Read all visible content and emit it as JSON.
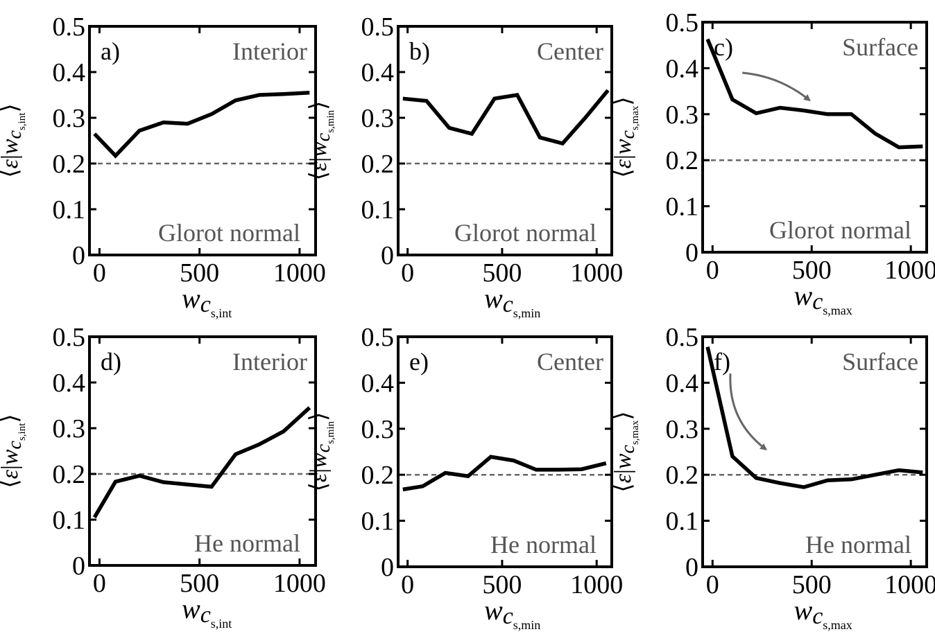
{
  "chart_data": [
    {
      "type": "line",
      "panel_label": "a)",
      "title": "Interior",
      "initializer": "Glorot normal",
      "xlabel": {
        "symbol": "w",
        "sub_c": "c",
        "sub_s": "s,int"
      },
      "ylabel": {
        "symbol": "w",
        "sub_c": "c",
        "sub_s": "s,int"
      },
      "xlim": [
        -50,
        1080
      ],
      "ylim": [
        0,
        0.5
      ],
      "xticks": [
        "0",
        "500",
        "1000"
      ],
      "yticks": [
        "0",
        "0.1",
        "0.2",
        "0.3",
        "0.4",
        "0.5"
      ],
      "reference_line": 0.2,
      "series": [
        {
          "x": [
            -25,
            80,
            200,
            320,
            440,
            560,
            680,
            800,
            920,
            1050
          ],
          "y": [
            0.265,
            0.217,
            0.272,
            0.29,
            0.287,
            0.308,
            0.338,
            0.35,
            0.352,
            0.355
          ]
        }
      ]
    },
    {
      "type": "line",
      "panel_label": "b)",
      "title": "Center",
      "initializer": "Glorot normal",
      "xlabel": {
        "symbol": "w",
        "sub_c": "c",
        "sub_s": "s,min"
      },
      "ylabel": {
        "symbol": "w",
        "sub_c": "c",
        "sub_s": "s,min"
      },
      "xlim": [
        -50,
        1080
      ],
      "ylim": [
        0,
        0.5
      ],
      "xticks": [
        "0",
        "500",
        "1000"
      ],
      "yticks": [
        "0",
        "0.1",
        "0.2",
        "0.3",
        "0.4",
        "0.5"
      ],
      "reference_line": 0.2,
      "series": [
        {
          "x": [
            -25,
            100,
            220,
            340,
            460,
            580,
            700,
            820,
            940,
            1060
          ],
          "y": [
            0.342,
            0.337,
            0.278,
            0.265,
            0.342,
            0.35,
            0.257,
            0.244,
            0.3,
            0.36
          ]
        }
      ]
    },
    {
      "type": "line",
      "panel_label": "c)",
      "title": "Surface",
      "initializer": "Glorot normal",
      "xlabel": {
        "symbol": "w",
        "sub_c": "c",
        "sub_s": "s,max"
      },
      "ylabel": {
        "symbol": "w",
        "sub_c": "c",
        "sub_s": "s,max"
      },
      "xlim": [
        -50,
        1080
      ],
      "ylim": [
        0,
        0.5
      ],
      "xticks": [
        "0",
        "500",
        "1000"
      ],
      "yticks": [
        "0",
        "0.1",
        "0.2",
        "0.3",
        "0.4",
        "0.5"
      ],
      "reference_line": 0.2,
      "series": [
        {
          "x": [
            -25,
            100,
            220,
            340,
            460,
            580,
            700,
            820,
            940,
            1060
          ],
          "y": [
            0.463,
            0.332,
            0.302,
            0.314,
            0.308,
            0.3,
            0.3,
            0.258,
            0.228,
            0.23
          ]
        }
      ],
      "arrow": {
        "from": [
          150,
          0.39
        ],
        "to": [
          490,
          0.33
        ],
        "bend": -0.04
      }
    },
    {
      "type": "line",
      "panel_label": "d)",
      "title": "Interior",
      "initializer": "He normal",
      "xlabel": {
        "symbol": "w",
        "sub_c": "c",
        "sub_s": "s,int"
      },
      "ylabel": {
        "symbol": "w",
        "sub_c": "c",
        "sub_s": "s,int"
      },
      "xlim": [
        -50,
        1080
      ],
      "ylim": [
        0,
        0.5
      ],
      "xticks": [
        "0",
        "500",
        "1000"
      ],
      "yticks": [
        "0",
        "0.1",
        "0.2",
        "0.3",
        "0.4",
        "0.5"
      ],
      "reference_line": 0.2,
      "series": [
        {
          "x": [
            -25,
            80,
            200,
            320,
            440,
            560,
            680,
            800,
            920,
            1050
          ],
          "y": [
            0.105,
            0.183,
            0.196,
            0.182,
            0.177,
            0.172,
            0.243,
            0.265,
            0.293,
            0.345
          ]
        }
      ]
    },
    {
      "type": "line",
      "panel_label": "e)",
      "title": "Center",
      "initializer": "He normal",
      "xlabel": {
        "symbol": "w",
        "sub_c": "c",
        "sub_s": "s,min"
      },
      "ylabel": {
        "symbol": "w",
        "sub_c": "c",
        "sub_s": "s,min"
      },
      "xlim": [
        -50,
        1080
      ],
      "ylim": [
        0,
        0.5
      ],
      "xticks": [
        "0",
        "500",
        "1000"
      ],
      "yticks": [
        "0",
        "0.1",
        "0.2",
        "0.3",
        "0.4",
        "0.5"
      ],
      "reference_line": 0.2,
      "series": [
        {
          "x": [
            -25,
            80,
            200,
            320,
            440,
            560,
            680,
            800,
            920,
            1050
          ],
          "y": [
            0.168,
            0.175,
            0.204,
            0.197,
            0.239,
            0.231,
            0.211,
            0.211,
            0.212,
            0.225
          ]
        }
      ]
    },
    {
      "type": "line",
      "panel_label": "f)",
      "title": "Surface",
      "initializer": "He normal",
      "xlabel": {
        "symbol": "w",
        "sub_c": "c",
        "sub_s": "s,max"
      },
      "ylabel": {
        "symbol": "w",
        "sub_c": "c",
        "sub_s": "s,max"
      },
      "xlim": [
        -50,
        1080
      ],
      "ylim": [
        0,
        0.5
      ],
      "xticks": [
        "0",
        "500",
        "1000"
      ],
      "yticks": [
        "0",
        "0.1",
        "0.2",
        "0.3",
        "0.4",
        "0.5"
      ],
      "reference_line": 0.2,
      "series": [
        {
          "x": [
            -25,
            100,
            220,
            340,
            460,
            580,
            700,
            820,
            940,
            1060
          ],
          "y": [
            0.478,
            0.24,
            0.193,
            0.182,
            0.173,
            0.188,
            0.19,
            0.2,
            0.21,
            0.205
          ]
        }
      ],
      "arrow": {
        "from": [
          90,
          0.42
        ],
        "to": [
          270,
          0.255
        ],
        "bend": 0.08
      }
    }
  ]
}
